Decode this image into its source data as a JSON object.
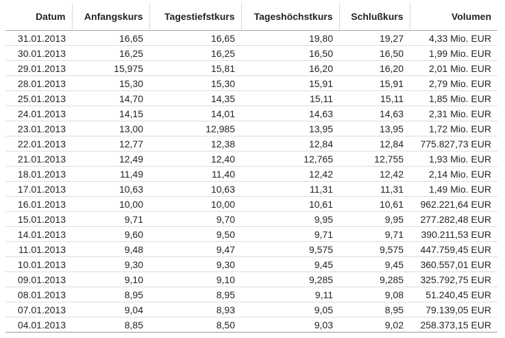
{
  "table": {
    "header": [
      "Datum",
      "Anfangskurs",
      "Tagestiefstkurs",
      "Tageshöchstkurs",
      "Schlußkurs",
      "Volumen"
    ],
    "rows": [
      [
        "31.01.2013",
        "16,65",
        "16,65",
        "19,80",
        "19,27",
        "4,33 Mio. EUR"
      ],
      [
        "30.01.2013",
        "16,25",
        "16,25",
        "16,50",
        "16,50",
        "1,99 Mio. EUR"
      ],
      [
        "29.01.2013",
        "15,975",
        "15,81",
        "16,20",
        "16,20",
        "2,01 Mio. EUR"
      ],
      [
        "28.01.2013",
        "15,30",
        "15,30",
        "15,91",
        "15,91",
        "2,79 Mio. EUR"
      ],
      [
        "25.01.2013",
        "14,70",
        "14,35",
        "15,11",
        "15,11",
        "1,85 Mio. EUR"
      ],
      [
        "24.01.2013",
        "14,15",
        "14,01",
        "14,63",
        "14,63",
        "2,31 Mio. EUR"
      ],
      [
        "23.01.2013",
        "13,00",
        "12,985",
        "13,95",
        "13,95",
        "1,72 Mio. EUR"
      ],
      [
        "22.01.2013",
        "12,77",
        "12,38",
        "12,84",
        "12,84",
        "775.827,73 EUR"
      ],
      [
        "21.01.2013",
        "12,49",
        "12,40",
        "12,765",
        "12,755",
        "1,93 Mio. EUR"
      ],
      [
        "18.01.2013",
        "11,49",
        "11,40",
        "12,42",
        "12,42",
        "2,14 Mio. EUR"
      ],
      [
        "17.01.2013",
        "10,63",
        "10,63",
        "11,31",
        "11,31",
        "1,49 Mio. EUR"
      ],
      [
        "16.01.2013",
        "10,00",
        "10,00",
        "10,61",
        "10,61",
        "962.221,64 EUR"
      ],
      [
        "15.01.2013",
        "9,71",
        "9,70",
        "9,95",
        "9,95",
        "277.282,48 EUR"
      ],
      [
        "14.01.2013",
        "9,60",
        "9,50",
        "9,71",
        "9,71",
        "390.211,53 EUR"
      ],
      [
        "11.01.2013",
        "9,48",
        "9,47",
        "9,575",
        "9,575",
        "447.759,45 EUR"
      ],
      [
        "10.01.2013",
        "9,30",
        "9,30",
        "9,45",
        "9,45",
        "360.557,01 EUR"
      ],
      [
        "09.01.2013",
        "9,10",
        "9,10",
        "9,285",
        "9,285",
        "325.792,75 EUR"
      ],
      [
        "08.01.2013",
        "8,95",
        "8,95",
        "9,11",
        "9,08",
        "51.240,45 EUR"
      ],
      [
        "07.01.2013",
        "9,04",
        "8,93",
        "9,05",
        "8,95",
        "79.139,05 EUR"
      ],
      [
        "04.01.2013",
        "8,85",
        "8,50",
        "9,03",
        "9,02",
        "258.373,15 EUR"
      ]
    ]
  }
}
